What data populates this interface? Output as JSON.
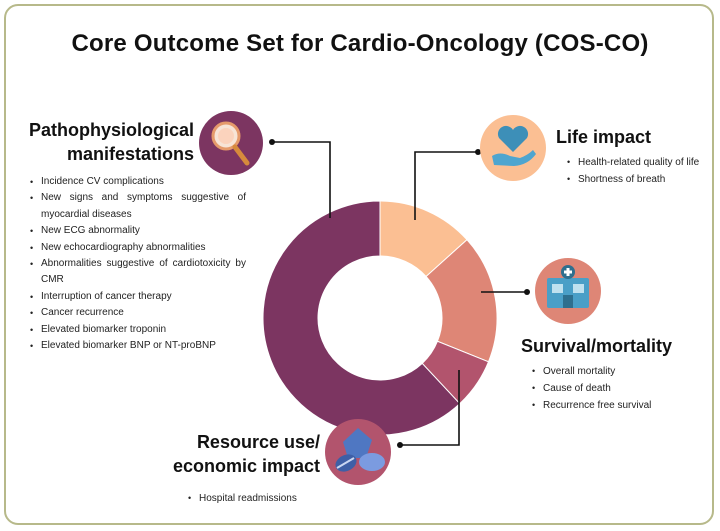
{
  "title": "Core Outcome Set for Cardio-Oncology (COS-CO)",
  "colors": {
    "pathophysiological": "#7c3561",
    "life_impact": "#fbbf93",
    "survival": "#de8676",
    "resource": "#b2546d",
    "frame": "#b7b98a"
  },
  "sections": {
    "pathophysiological": {
      "heading_line1": "Pathophysiological",
      "heading_line2": "manifestations",
      "icon": "magnifier-icon",
      "items": [
        "Incidence CV complications",
        "New signs and symptoms suggestive of myocardial diseases",
        "New ECG abnormality",
        "New echocardiography abnormalities",
        "Abnormalities suggestive of cardiotoxicity by CMR",
        "Interruption of cancer therapy",
        "Cancer recurrence",
        "Elevated biomarker troponin",
        "Elevated biomarker BNP or NT-proBNP"
      ]
    },
    "life_impact": {
      "heading": "Life impact",
      "icon": "heart-in-hand-icon",
      "items": [
        "Health-related quality of life",
        "Shortness of breath"
      ]
    },
    "survival": {
      "heading": "Survival/mortality",
      "icon": "hospital-icon",
      "items": [
        "Overall mortality",
        "Cause of death",
        "Recurrence free survival"
      ]
    },
    "resource": {
      "heading_line1": "Resource use/",
      "heading_line2": "economic impact",
      "icon": "pills-icon",
      "items": [
        "Hospital readmissions"
      ]
    }
  }
}
